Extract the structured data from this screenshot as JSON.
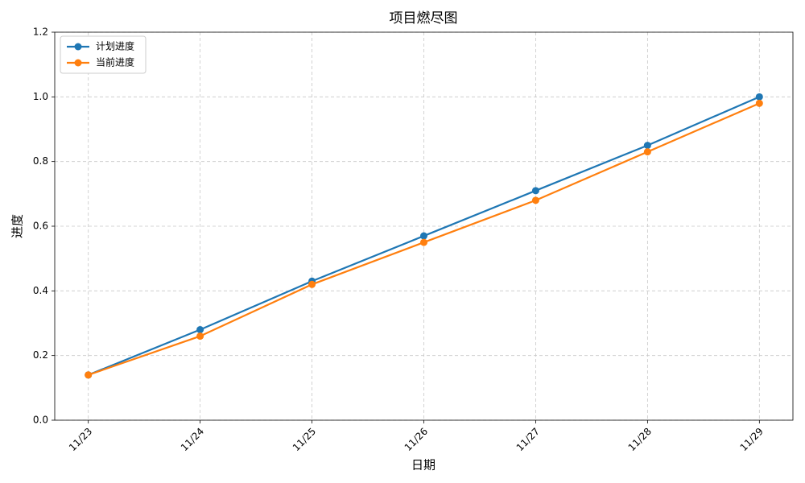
{
  "chart_data": {
    "type": "line",
    "title": "项目燃尽图",
    "x_label": "日期",
    "y_label": "进度",
    "categories": [
      "11/23",
      "11/24",
      "11/25",
      "11/26",
      "11/27",
      "11/28",
      "11/29"
    ],
    "series": [
      {
        "name": "计划进度",
        "color": "#1f77b4",
        "values": [
          0.14,
          0.28,
          0.43,
          0.57,
          0.71,
          0.85,
          1.0
        ]
      },
      {
        "name": "当前进度",
        "color": "#ff7f0e",
        "values": [
          0.14,
          0.26,
          0.42,
          0.55,
          0.68,
          0.83,
          0.98
        ]
      }
    ],
    "ylim": [
      0,
      1.2
    ],
    "yticks": [
      {
        "value": 0,
        "label": "0.0"
      },
      0.2,
      0.4,
      0.6,
      0.8,
      {
        "value": 1,
        "label": "1.0"
      },
      1.2
    ],
    "grid": true,
    "legend": "upper left"
  }
}
